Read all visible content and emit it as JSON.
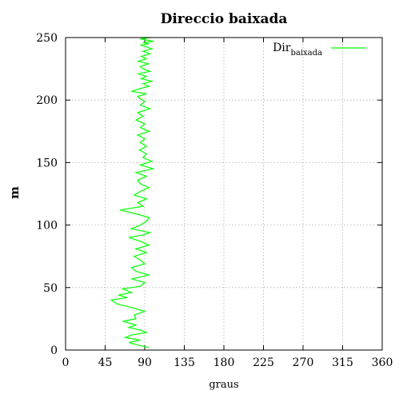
{
  "chart_data": {
    "type": "line",
    "title": "Direccio baixada",
    "xlabel": "graus",
    "ylabel": "m",
    "xlim": [
      0,
      360
    ],
    "ylim": [
      0,
      250
    ],
    "x_ticks": [
      0,
      45,
      90,
      135,
      180,
      225,
      270,
      315,
      360
    ],
    "x_tick_labels": [
      "0",
      "45",
      "90",
      "135",
      "180",
      "225",
      "270",
      "315",
      "360"
    ],
    "y_ticks": [
      0,
      50,
      100,
      150,
      200,
      250
    ],
    "y_tick_labels": [
      "0",
      "50",
      "100",
      "150",
      "200",
      "250"
    ],
    "grid": true,
    "legend": "top-right",
    "series": [
      {
        "name": "Dir",
        "name_subscript": "baixada",
        "color": "#00ff00",
        "x": [
          95,
          82,
          72,
          85,
          68,
          75,
          92,
          85,
          72,
          80,
          65,
          80,
          78,
          90,
          75,
          58,
          52,
          70,
          60,
          75,
          65,
          85,
          90,
          75,
          95,
          80,
          75,
          90,
          85,
          78,
          92,
          80,
          95,
          85,
          72,
          88,
          96,
          75,
          85,
          92,
          95,
          80,
          62,
          88,
          82,
          92,
          78,
          85,
          95,
          85,
          82,
          92,
          80,
          100,
          85,
          98,
          88,
          92,
          84,
          92,
          85,
          90,
          82,
          95,
          85,
          90,
          80,
          88,
          82,
          96,
          85,
          90,
          85,
          82,
          92,
          75,
          84,
          95,
          88,
          98,
          86,
          92,
          82,
          96,
          88,
          85,
          95,
          82,
          92,
          86,
          96,
          88,
          98,
          90,
          85,
          95,
          88,
          100,
          92,
          85,
          96,
          90,
          98
        ],
        "y": [
          2,
          4,
          6,
          8,
          10,
          12,
          14,
          16,
          18,
          20,
          23,
          25,
          28,
          31,
          34,
          37,
          40,
          42,
          44,
          46,
          49,
          51,
          54,
          57,
          60,
          63,
          66,
          69,
          72,
          75,
          78,
          81,
          84,
          87,
          90,
          92,
          94,
          97,
          100,
          103,
          106,
          109,
          112,
          115,
          118,
          121,
          124,
          127,
          130,
          133,
          136,
          139,
          142,
          145,
          148,
          151,
          154,
          157,
          160,
          163,
          166,
          169,
          172,
          175,
          178,
          181,
          184,
          187,
          190,
          193,
          196,
          199,
          201,
          203,
          205,
          207,
          209,
          211,
          213,
          215,
          217,
          219,
          221,
          223,
          225,
          227,
          229,
          231,
          233,
          235,
          237,
          239,
          241,
          243,
          244,
          245,
          246,
          247,
          248,
          249,
          250,
          250,
          250
        ]
      }
    ]
  }
}
